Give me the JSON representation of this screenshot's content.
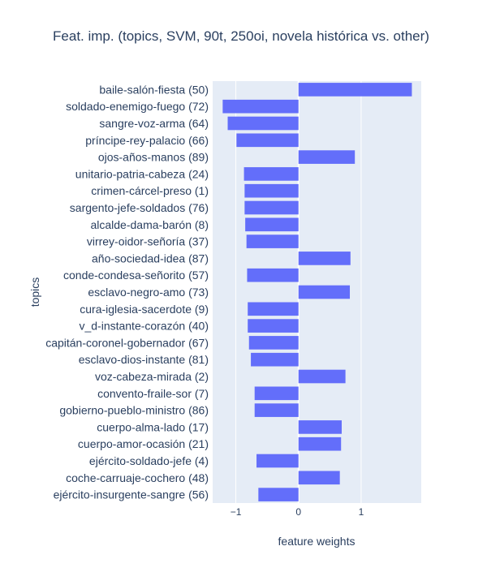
{
  "chart_data": {
    "type": "bar",
    "orientation": "horizontal",
    "title": "Feat. imp. (topics, SVM, 90t, 250oi, novela histórica vs. other)",
    "xlabel": "feature weights",
    "ylabel": "topics",
    "xlim": [
      -1.37,
      1.96
    ],
    "xticks": [
      {
        "value": -1,
        "label": "−1"
      },
      {
        "value": 0,
        "label": "0"
      },
      {
        "value": 1,
        "label": "1"
      }
    ],
    "grid": true,
    "legend": false,
    "colors": {
      "bar": "#636efa",
      "plot_bg": "#e5ecf6",
      "grid": "#ffffff",
      "text": "#2a3f5f"
    },
    "categories": [
      "baile-salón-fiesta (50)",
      "soldado-enemigo-fuego (72)",
      "sangre-voz-arma (64)",
      "príncipe-rey-palacio (66)",
      "ojos-años-manos (89)",
      "unitario-patria-cabeza (24)",
      "crimen-cárcel-preso (1)",
      "sargento-jefe-soldados (76)",
      "alcalde-dama-barón (8)",
      "virrey-oidor-señoría (37)",
      "año-sociedad-idea (87)",
      "conde-condesa-señorito (57)",
      "esclavo-negro-amo (73)",
      "cura-iglesia-sacerdote (9)",
      "v_d-instante-corazón (40)",
      "capitán-coronel-gobernador (67)",
      "esclavo-dios-instante (81)",
      "voz-cabeza-mirada (2)",
      "convento-fraile-sor (7)",
      "gobierno-pueblo-ministro (86)",
      "cuerpo-alma-lado (17)",
      "cuerpo-amor-ocasión (21)",
      "ejército-soldado-jefe (4)",
      "coche-carruaje-cochero (48)",
      "ejército-insurgente-sangre (56)"
    ],
    "values": [
      1.81,
      -1.21,
      -1.13,
      -0.99,
      0.9,
      -0.87,
      -0.86,
      -0.86,
      -0.85,
      -0.83,
      0.83,
      -0.82,
      0.82,
      -0.81,
      -0.81,
      -0.79,
      -0.76,
      0.75,
      -0.7,
      -0.7,
      0.69,
      0.68,
      -0.67,
      0.66,
      -0.64
    ]
  }
}
